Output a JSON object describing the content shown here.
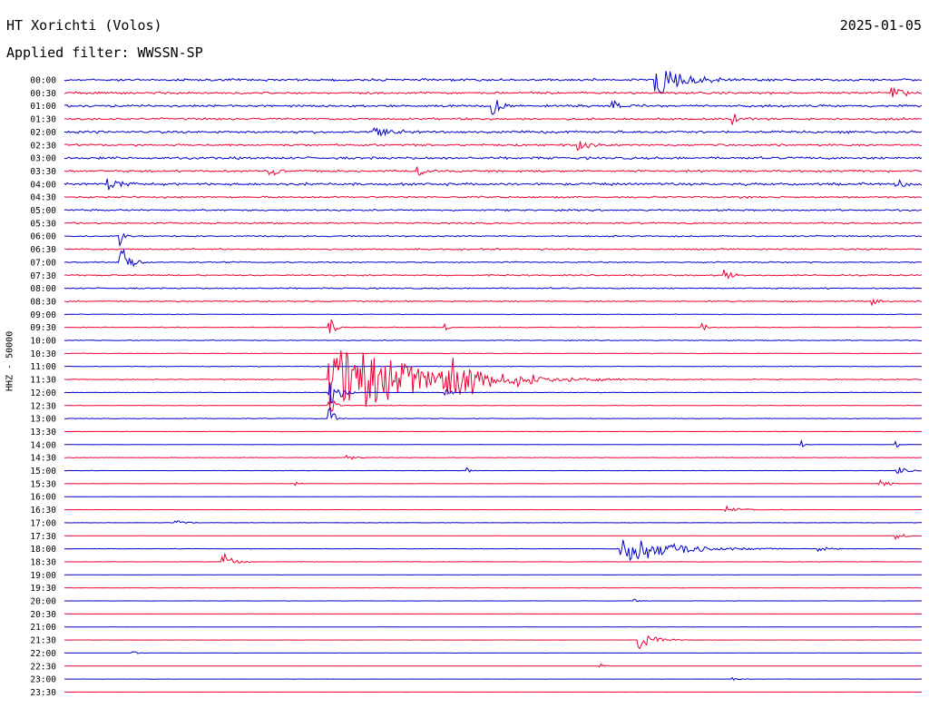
{
  "header": {
    "station": "HT Xorichti (Volos)",
    "date": "2025-01-05",
    "filter": "Applied filter: WWSSN-SP"
  },
  "chart_data": {
    "type": "line",
    "title": "HT Xorichti (Volos)",
    "ylabel": "HHZ - 50000",
    "xlabel": "",
    "grid": false,
    "legend": "none",
    "colors": {
      "even_row": "#0000cc",
      "odd_row": "#ee0033"
    },
    "rows": [
      {
        "label": "00:00",
        "noise": 0.55,
        "events": [
          {
            "x": 0.69,
            "amp": 1.6,
            "dur": 0.03
          }
        ]
      },
      {
        "label": "00:30",
        "noise": 0.55,
        "events": [
          {
            "x": 0.965,
            "amp": 0.8,
            "dur": 0.01
          }
        ]
      },
      {
        "label": "01:00",
        "noise": 0.55,
        "events": [
          {
            "x": 0.5,
            "amp": 0.9,
            "dur": 0.01
          },
          {
            "x": 0.64,
            "amp": 0.6,
            "dur": 0.01
          }
        ]
      },
      {
        "label": "01:30",
        "noise": 0.5,
        "events": [
          {
            "x": 0.78,
            "amp": 0.6,
            "dur": 0.01
          }
        ]
      },
      {
        "label": "02:00",
        "noise": 0.6,
        "events": [
          {
            "x": 0.36,
            "amp": 0.6,
            "dur": 0.02
          }
        ]
      },
      {
        "label": "02:30",
        "noise": 0.5,
        "events": [
          {
            "x": 0.6,
            "amp": 0.7,
            "dur": 0.01
          }
        ]
      },
      {
        "label": "03:00",
        "noise": 0.6,
        "events": []
      },
      {
        "label": "03:30",
        "noise": 0.5,
        "events": [
          {
            "x": 0.24,
            "amp": 0.6,
            "dur": 0.01
          },
          {
            "x": 0.41,
            "amp": 0.6,
            "dur": 0.01
          }
        ]
      },
      {
        "label": "04:00",
        "noise": 0.6,
        "events": [
          {
            "x": 0.05,
            "amp": 0.6,
            "dur": 0.02
          },
          {
            "x": 0.97,
            "amp": 0.6,
            "dur": 0.01
          }
        ]
      },
      {
        "label": "04:30",
        "noise": 0.45,
        "events": []
      },
      {
        "label": "05:00",
        "noise": 0.4,
        "events": []
      },
      {
        "label": "05:30",
        "noise": 0.4,
        "events": []
      },
      {
        "label": "06:00",
        "noise": 0.35,
        "events": [
          {
            "x": 0.065,
            "amp": 1.0,
            "dur": 0.005
          }
        ]
      },
      {
        "label": "06:30",
        "noise": 0.35,
        "events": []
      },
      {
        "label": "07:00",
        "noise": 0.3,
        "events": [
          {
            "x": 0.065,
            "amp": 1.8,
            "dur": 0.01
          }
        ]
      },
      {
        "label": "07:30",
        "noise": 0.35,
        "events": [
          {
            "x": 0.77,
            "amp": 0.5,
            "dur": 0.01
          }
        ]
      },
      {
        "label": "08:00",
        "noise": 0.3,
        "events": []
      },
      {
        "label": "08:30",
        "noise": 0.3,
        "events": [
          {
            "x": 0.94,
            "amp": 0.4,
            "dur": 0.01
          }
        ]
      },
      {
        "label": "09:00",
        "noise": 0.15,
        "events": []
      },
      {
        "label": "09:30",
        "noise": 0.18,
        "events": [
          {
            "x": 0.31,
            "amp": 1.1,
            "dur": 0.005
          },
          {
            "x": 0.445,
            "amp": 0.4,
            "dur": 0.005
          },
          {
            "x": 0.745,
            "amp": 0.4,
            "dur": 0.005
          }
        ]
      },
      {
        "label": "10:00",
        "noise": 0.2,
        "events": []
      },
      {
        "label": "10:30",
        "noise": 0.15,
        "events": []
      },
      {
        "label": "11:00",
        "noise": 0.15,
        "events": []
      },
      {
        "label": "11:30",
        "noise": 0.2,
        "events": [
          {
            "x": 0.31,
            "amp": 4.5,
            "dur": 0.08
          },
          {
            "x": 0.445,
            "amp": 1.8,
            "dur": 0.05
          }
        ]
      },
      {
        "label": "12:00",
        "noise": 0.12,
        "events": [
          {
            "x": 0.31,
            "amp": 1.5,
            "dur": 0.01
          },
          {
            "x": 0.445,
            "amp": 0.6,
            "dur": 0.005
          }
        ]
      },
      {
        "label": "12:30",
        "noise": 0.12,
        "events": [
          {
            "x": 0.31,
            "amp": 1.0,
            "dur": 0.005
          }
        ]
      },
      {
        "label": "13:00",
        "noise": 0.15,
        "events": [
          {
            "x": 0.31,
            "amp": 1.2,
            "dur": 0.005
          }
        ]
      },
      {
        "label": "13:30",
        "noise": 0.12,
        "events": []
      },
      {
        "label": "14:00",
        "noise": 0.08,
        "events": [
          {
            "x": 0.86,
            "amp": 0.35,
            "dur": 0.005
          },
          {
            "x": 0.97,
            "amp": 0.3,
            "dur": 0.005
          }
        ]
      },
      {
        "label": "14:30",
        "noise": 0.12,
        "events": [
          {
            "x": 0.33,
            "amp": 0.25,
            "dur": 0.01
          }
        ]
      },
      {
        "label": "15:00",
        "noise": 0.08,
        "events": [
          {
            "x": 0.47,
            "amp": 0.25,
            "dur": 0.005
          },
          {
            "x": 0.97,
            "amp": 0.5,
            "dur": 0.01
          }
        ]
      },
      {
        "label": "15:30",
        "noise": 0.08,
        "events": [
          {
            "x": 0.27,
            "amp": 0.2,
            "dur": 0.005
          },
          {
            "x": 0.95,
            "amp": 0.5,
            "dur": 0.01
          }
        ]
      },
      {
        "label": "16:00",
        "noise": 0.05,
        "events": []
      },
      {
        "label": "16:30",
        "noise": 0.06,
        "events": [
          {
            "x": 0.77,
            "amp": 0.35,
            "dur": 0.02
          }
        ]
      },
      {
        "label": "17:00",
        "noise": 0.07,
        "events": [
          {
            "x": 0.13,
            "amp": 0.3,
            "dur": 0.01
          }
        ]
      },
      {
        "label": "17:30",
        "noise": 0.05,
        "events": [
          {
            "x": 0.97,
            "amp": 0.3,
            "dur": 0.01
          }
        ]
      },
      {
        "label": "18:00",
        "noise": 0.1,
        "events": [
          {
            "x": 0.65,
            "amp": 1.6,
            "dur": 0.05
          },
          {
            "x": 0.88,
            "amp": 0.3,
            "dur": 0.01
          }
        ]
      },
      {
        "label": "18:30",
        "noise": 0.1,
        "events": [
          {
            "x": 0.185,
            "amp": 0.9,
            "dur": 0.01
          }
        ]
      },
      {
        "label": "19:00",
        "noise": 0.05,
        "events": []
      },
      {
        "label": "19:30",
        "noise": 0.04,
        "events": []
      },
      {
        "label": "20:00",
        "noise": 0.06,
        "events": [
          {
            "x": 0.665,
            "amp": 0.2,
            "dur": 0.005
          }
        ]
      },
      {
        "label": "20:30",
        "noise": 0.05,
        "events": []
      },
      {
        "label": "21:00",
        "noise": 0.04,
        "events": []
      },
      {
        "label": "21:30",
        "noise": 0.04,
        "events": [
          {
            "x": 0.67,
            "amp": 0.9,
            "dur": 0.015
          }
        ]
      },
      {
        "label": "22:00",
        "noise": 0.04,
        "events": [
          {
            "x": 0.08,
            "amp": 0.2,
            "dur": 0.005
          }
        ]
      },
      {
        "label": "22:30",
        "noise": 0.04,
        "events": [
          {
            "x": 0.625,
            "amp": 0.2,
            "dur": 0.005
          }
        ]
      },
      {
        "label": "23:00",
        "noise": 0.04,
        "events": [
          {
            "x": 0.78,
            "amp": 0.15,
            "dur": 0.01
          }
        ]
      },
      {
        "label": "23:30",
        "noise": 0.04,
        "events": []
      }
    ]
  }
}
